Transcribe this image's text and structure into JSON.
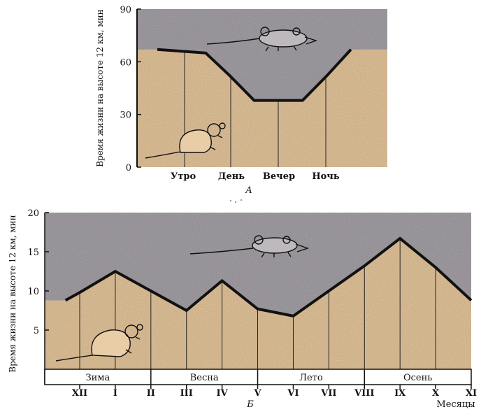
{
  "chart_data": [
    {
      "type": "area",
      "label": "А",
      "ylabel": "Время жизни на высоте 12 км, мин",
      "ylim": [
        0,
        90
      ],
      "yticks": [
        0,
        30,
        60,
        90
      ],
      "categories": [
        "Утро",
        "День",
        "Вечер",
        "Ночь"
      ],
      "x": [
        0,
        1,
        2,
        3,
        4,
        5,
        6,
        7,
        8
      ],
      "values": [
        67,
        66,
        65,
        52,
        38,
        38,
        38,
        52,
        67
      ],
      "colors": {
        "upper": "#a6a2a8",
        "lower": "#e6c79c",
        "line": "#111111"
      }
    },
    {
      "type": "area",
      "label": "Б",
      "ylabel": "Время жизни на высоте 12 км, мин",
      "ylim": [
        0,
        20
      ],
      "yticks": [
        5,
        10,
        15,
        20
      ],
      "xlabel": "Месяцы",
      "months": [
        "XII",
        "I",
        "II",
        "III",
        "IV",
        "V",
        "VI",
        "VII",
        "VIII",
        "IX",
        "X",
        "XI"
      ],
      "seasons": [
        "Зима",
        "Весна",
        "Лето",
        "Осень"
      ],
      "x": [
        -0.4,
        0,
        1,
        2,
        3,
        4,
        5,
        6,
        7,
        8,
        9,
        10,
        11
      ],
      "values": [
        8.8,
        9.8,
        12.5,
        10.0,
        7.5,
        11.3,
        7.7,
        6.8,
        10.0,
        13.2,
        16.7,
        13.0,
        8.8
      ],
      "colors": {
        "upper": "#a6a2a8",
        "lower": "#e6c79c",
        "line": "#111111"
      }
    }
  ]
}
